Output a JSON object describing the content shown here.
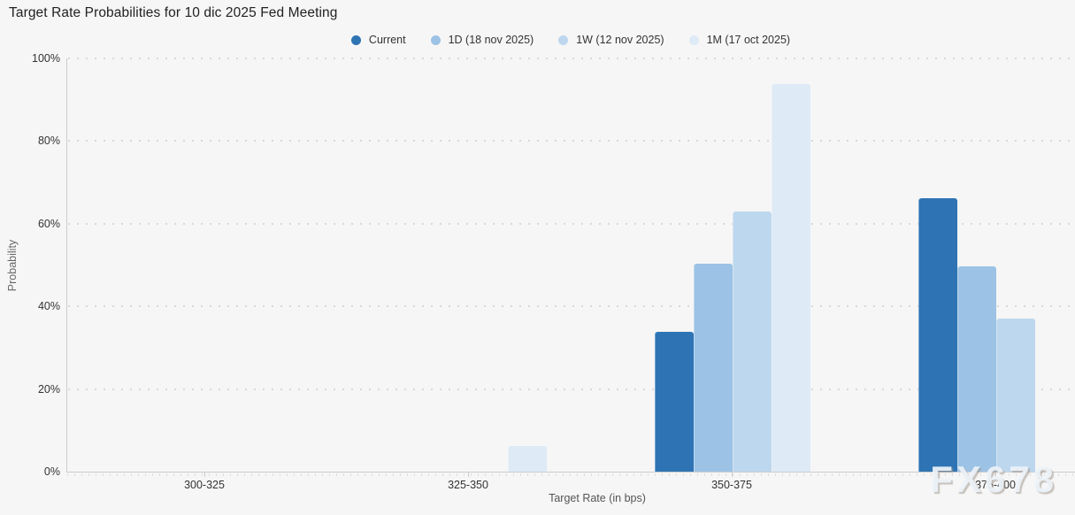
{
  "page": {
    "background": "#f6f6f6"
  },
  "chart_data": {
    "type": "bar",
    "title": "Target Rate Probabilities for 10 dic 2025 Fed Meeting",
    "categories": [
      "300-325",
      "325-350",
      "350-375",
      "375-400"
    ],
    "series": [
      {
        "name": "Current",
        "color": "#2E74B4",
        "values": [
          0,
          0,
          33.9,
          66.1
        ]
      },
      {
        "name": "1D (18 nov 2025)",
        "color": "#9CC2E5",
        "values": [
          0,
          0,
          50.3,
          49.7
        ]
      },
      {
        "name": "1W (12 nov 2025)",
        "color": "#BDD7EE",
        "values": [
          0,
          0,
          62.9,
          37.1
        ]
      },
      {
        "name": "1M (17 oct 2025)",
        "color": "#DEEAF6",
        "values": [
          0,
          6.3,
          93.7,
          0
        ]
      }
    ],
    "xlabel": "Target Rate (in bps)",
    "ylabel": "Probability",
    "ylim": [
      0,
      100
    ],
    "ytick_labels": [
      "0%",
      "20%",
      "40%",
      "60%",
      "80%",
      "100%"
    ],
    "ytick_values": [
      0,
      20,
      40,
      60,
      80,
      100
    ],
    "legend_position": "top-center",
    "grid": "horizontal-dotted"
  },
  "watermark": {
    "text": "FX678"
  }
}
